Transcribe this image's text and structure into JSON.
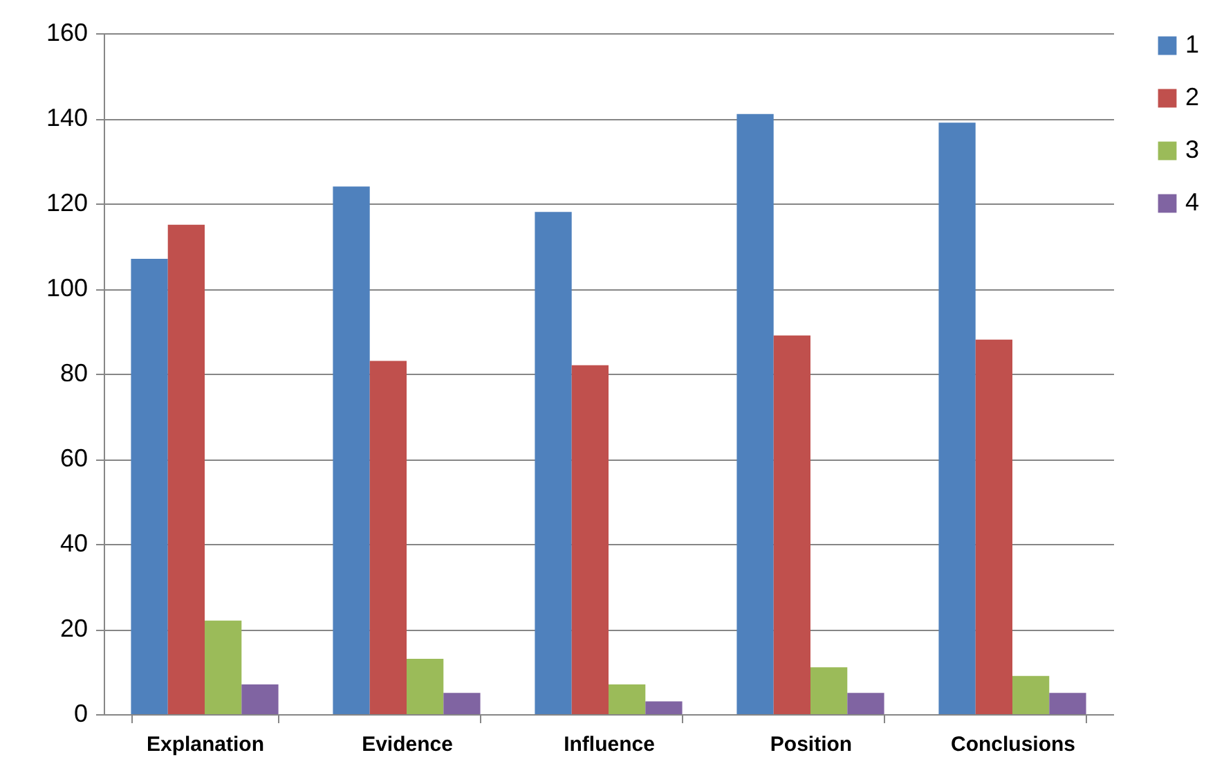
{
  "chart_data": {
    "type": "bar",
    "categories": [
      "Explanation",
      "Evidence",
      "Influence",
      "Position",
      "Conclusions"
    ],
    "series": [
      {
        "name": "1",
        "color": "#4f81bd",
        "values": [
          107,
          124,
          118,
          141,
          139
        ]
      },
      {
        "name": "2",
        "color": "#c0504d",
        "values": [
          115,
          83,
          82,
          89,
          88
        ]
      },
      {
        "name": "3",
        "color": "#9bbb59",
        "values": [
          22,
          13,
          7,
          11,
          9
        ]
      },
      {
        "name": "4",
        "color": "#8064a2",
        "values": [
          7,
          5,
          3,
          5,
          5
        ]
      }
    ],
    "ylim": [
      0,
      160
    ],
    "yticks": [
      0,
      20,
      40,
      60,
      80,
      100,
      120,
      140,
      160
    ],
    "grid": "y",
    "legend": "right"
  }
}
